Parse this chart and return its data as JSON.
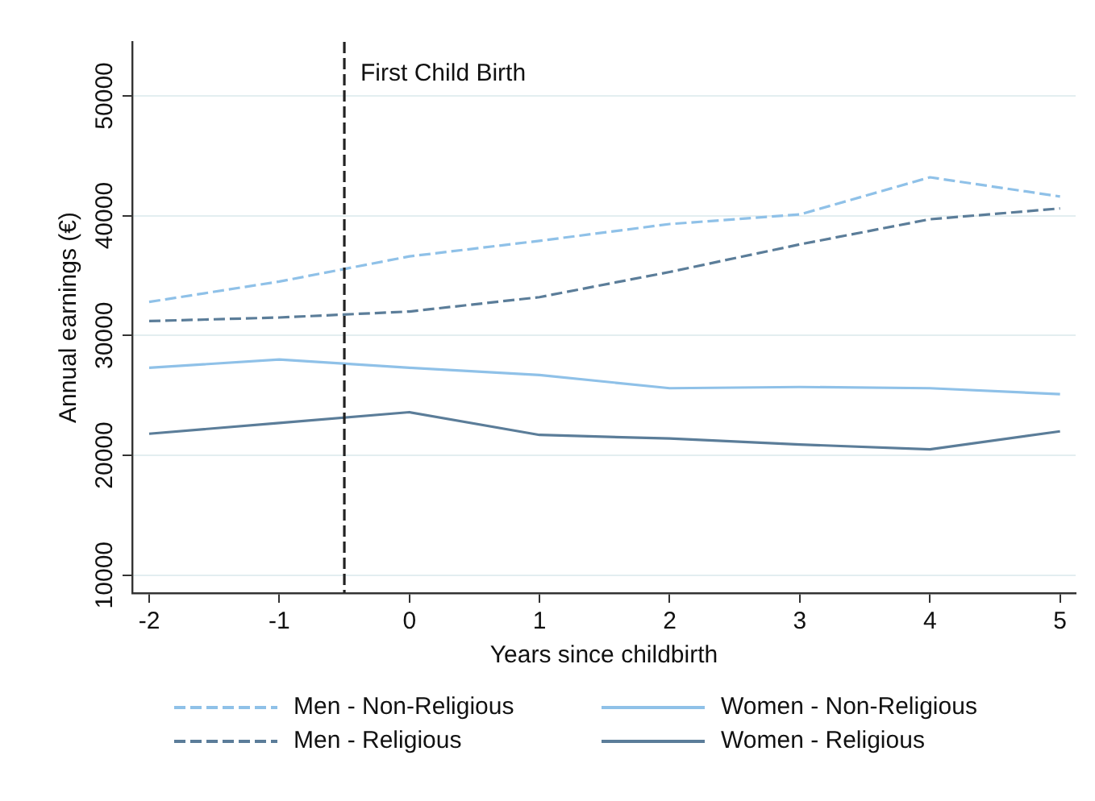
{
  "chart_data": {
    "type": "line",
    "xlabel": "Years since childbirth",
    "ylabel": "Annual earnings (€)",
    "x": [
      -2,
      -1,
      0,
      1,
      2,
      3,
      4,
      5
    ],
    "series": [
      {
        "name": "Men - Non-Religious",
        "color": "#8fc1e8",
        "line_style": "dashed",
        "values": [
          32800,
          34500,
          36600,
          37900,
          39300,
          40100,
          43200,
          41600
        ]
      },
      {
        "name": "Men - Religious",
        "color": "#5b7d99",
        "line_style": "dashed",
        "values": [
          31200,
          31500,
          32000,
          33200,
          35300,
          37600,
          39700,
          40600
        ]
      },
      {
        "name": "Women - Non-Religious",
        "color": "#8fc1e8",
        "line_style": "solid",
        "values": [
          27300,
          28000,
          27300,
          26700,
          25600,
          25700,
          25600,
          25100
        ]
      },
      {
        "name": "Women - Religious",
        "color": "#5b7d99",
        "line_style": "solid",
        "values": [
          21800,
          22700,
          23600,
          21700,
          21400,
          20900,
          20500,
          22000
        ]
      }
    ],
    "xlim": [
      -2.13,
      5.12
    ],
    "xticks": [
      -2,
      -1,
      0,
      1,
      2,
      3,
      4,
      5
    ],
    "ylim": [
      8500,
      54500
    ],
    "yticks": [
      10000,
      20000,
      30000,
      40000,
      50000
    ],
    "ref_lines": [
      {
        "axis": "x",
        "value": -0.5,
        "label": "First Child Birth",
        "color": "#222222",
        "line_style": "dashed"
      }
    ],
    "grid": "y",
    "legend": "bottom",
    "marker": "none"
  }
}
